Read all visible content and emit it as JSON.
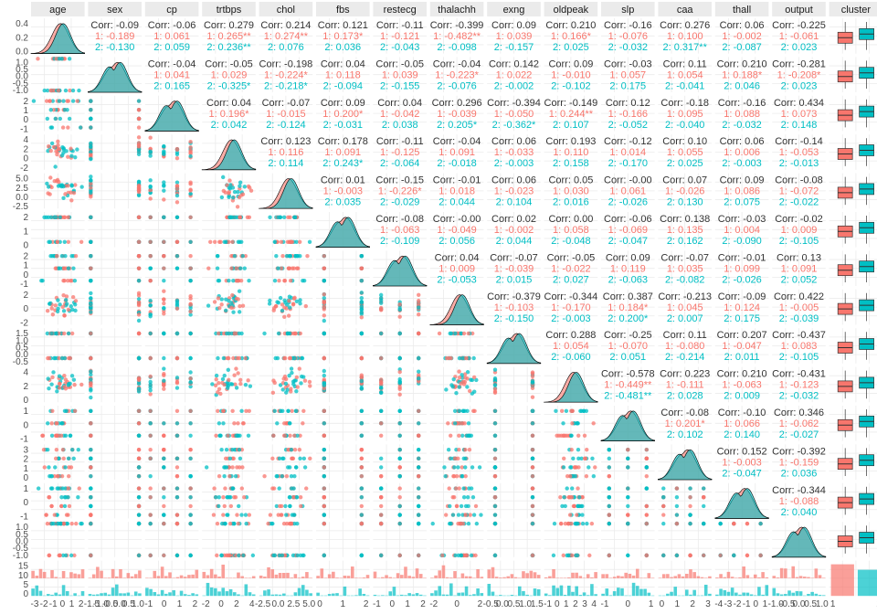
{
  "chart_data": {
    "type": "pairs",
    "variables": [
      "age",
      "sex",
      "cp",
      "trtbps",
      "chol",
      "fbs",
      "restecg",
      "thalachh",
      "exng",
      "oldpeak",
      "slp",
      "caa",
      "thall",
      "output",
      "cluster"
    ],
    "groups": [
      {
        "name": "1",
        "color": "#F8766D"
      },
      {
        "name": "2",
        "color": "#00BFC4"
      }
    ],
    "correlations": {
      "age|sex": {
        "corr": "-0.09",
        "g1": "-0.189",
        "g2": "-0.130"
      },
      "age|cp": {
        "corr": "-0.06",
        "g1": "0.061",
        "g2": "0.059"
      },
      "age|trtbps": {
        "corr": "0.279",
        "g1": "0.265**",
        "g2": "0.236**"
      },
      "age|chol": {
        "corr": "0.214",
        "g1": "0.274**",
        "g2": "0.076"
      },
      "age|fbs": {
        "corr": "0.121",
        "g1": "0.173*",
        "g2": "0.036"
      },
      "age|restecg": {
        "corr": "-0.11",
        "g1": "-0.121",
        "g2": "-0.043"
      },
      "age|thalachh": {
        "corr": "-0.399",
        "g1": "-0.482**",
        "g2": "-0.098"
      },
      "age|exng": {
        "corr": "0.09",
        "g1": "0.039",
        "g2": "-0.157"
      },
      "age|oldpeak": {
        "corr": "0.210",
        "g1": "0.166*",
        "g2": "0.025"
      },
      "age|slp": {
        "corr": "-0.16",
        "g1": "-0.076",
        "g2": "-0.032"
      },
      "age|caa": {
        "corr": "0.276",
        "g1": "0.100",
        "g2": "0.317**"
      },
      "age|thall": {
        "corr": "0.06",
        "g1": "-0.002",
        "g2": "-0.087"
      },
      "age|output": {
        "corr": "-0.225",
        "g1": "-0.061",
        "g2": "0.023"
      },
      "sex|cp": {
        "corr": "-0.04",
        "g1": "0.041",
        "g2": "0.165"
      },
      "sex|trtbps": {
        "corr": "-0.05",
        "g1": "0.029",
        "g2": "-0.325*"
      },
      "sex|chol": {
        "corr": "-0.198",
        "g1": "-0.224*",
        "g2": "-0.218*"
      },
      "sex|fbs": {
        "corr": "0.04",
        "g1": "0.118",
        "g2": "-0.094"
      },
      "sex|restecg": {
        "corr": "-0.05",
        "g1": "0.039",
        "g2": "-0.155"
      },
      "sex|thalachh": {
        "corr": "-0.04",
        "g1": "-0.223*",
        "g2": "-0.076"
      },
      "sex|exng": {
        "corr": "0.142",
        "g1": "0.022",
        "g2": "-0.002"
      },
      "sex|oldpeak": {
        "corr": "0.09",
        "g1": "-0.010",
        "g2": "-0.102"
      },
      "sex|slp": {
        "corr": "-0.03",
        "g1": "0.057",
        "g2": "0.175"
      },
      "sex|caa": {
        "corr": "0.11",
        "g1": "0.054",
        "g2": "-0.041"
      },
      "sex|thall": {
        "corr": "0.210",
        "g1": "0.188*",
        "g2": "0.046"
      },
      "sex|output": {
        "corr": "-0.281",
        "g1": "-0.208*",
        "g2": "0.023"
      },
      "cp|trtbps": {
        "corr": "0.04",
        "g1": "0.196*",
        "g2": "0.042"
      },
      "cp|chol": {
        "corr": "-0.07",
        "g1": "-0.015",
        "g2": "-0.124"
      },
      "cp|fbs": {
        "corr": "0.09",
        "g1": "0.200*",
        "g2": "-0.031"
      },
      "cp|restecg": {
        "corr": "0.04",
        "g1": "-0.042",
        "g2": "0.038"
      },
      "cp|thalachh": {
        "corr": "0.296",
        "g1": "-0.039",
        "g2": "0.205*"
      },
      "cp|exng": {
        "corr": "-0.394",
        "g1": "-0.050",
        "g2": "-0.362*"
      },
      "cp|oldpeak": {
        "corr": "-0.149",
        "g1": "0.244**",
        "g2": "0.107"
      },
      "cp|slp": {
        "corr": "0.12",
        "g1": "-0.166",
        "g2": "-0.052"
      },
      "cp|caa": {
        "corr": "-0.18",
        "g1": "0.095",
        "g2": "-0.040"
      },
      "cp|thall": {
        "corr": "-0.16",
        "g1": "0.088",
        "g2": "-0.032"
      },
      "cp|output": {
        "corr": "0.434",
        "g1": "0.073",
        "g2": "0.148"
      },
      "trtbps|chol": {
        "corr": "0.123",
        "g1": "0.116",
        "g2": "0.114"
      },
      "trtbps|fbs": {
        "corr": "0.178",
        "g1": "0.091",
        "g2": "0.243*"
      },
      "trtbps|restecg": {
        "corr": "-0.11",
        "g1": "-0.125",
        "g2": "-0.064"
      },
      "trtbps|thalachh": {
        "corr": "-0.04",
        "g1": "0.091",
        "g2": "-0.018"
      },
      "trtbps|exng": {
        "corr": "0.06",
        "g1": "-0.033",
        "g2": "-0.003"
      },
      "trtbps|oldpeak": {
        "corr": "0.193",
        "g1": "0.110",
        "g2": "0.158"
      },
      "trtbps|slp": {
        "corr": "-0.12",
        "g1": "0.014",
        "g2": "-0.170"
      },
      "trtbps|caa": {
        "corr": "0.10",
        "g1": "0.055",
        "g2": "0.025"
      },
      "trtbps|thall": {
        "corr": "0.06",
        "g1": "0.006",
        "g2": "-0.003"
      },
      "trtbps|output": {
        "corr": "-0.14",
        "g1": "-0.053",
        "g2": "-0.013"
      },
      "chol|fbs": {
        "corr": "0.01",
        "g1": "-0.003",
        "g2": "0.035"
      },
      "chol|restecg": {
        "corr": "-0.15",
        "g1": "-0.226*",
        "g2": "-0.029"
      },
      "chol|thalachh": {
        "corr": "-0.01",
        "g1": "0.018",
        "g2": "0.044"
      },
      "chol|exng": {
        "corr": "0.06",
        "g1": "-0.023",
        "g2": "0.104"
      },
      "chol|oldpeak": {
        "corr": "0.05",
        "g1": "0.030",
        "g2": "0.016"
      },
      "chol|slp": {
        "corr": "-0.00",
        "g1": "0.061",
        "g2": "-0.026"
      },
      "chol|caa": {
        "corr": "0.07",
        "g1": "-0.026",
        "g2": "0.130"
      },
      "chol|thall": {
        "corr": "0.09",
        "g1": "0.086",
        "g2": "0.075"
      },
      "chol|output": {
        "corr": "-0.08",
        "g1": "-0.072",
        "g2": "-0.022"
      },
      "fbs|restecg": {
        "corr": "-0.08",
        "g1": "-0.063",
        "g2": "-0.109"
      },
      "fbs|thalachh": {
        "corr": "-0.00",
        "g1": "-0.049",
        "g2": "0.056"
      },
      "fbs|exng": {
        "corr": "0.02",
        "g1": "-0.002",
        "g2": "0.044"
      },
      "fbs|oldpeak": {
        "corr": "0.00",
        "g1": "0.058",
        "g2": "-0.048"
      },
      "fbs|slp": {
        "corr": "-0.06",
        "g1": "-0.069",
        "g2": "-0.047"
      },
      "fbs|caa": {
        "corr": "0.138",
        "g1": "0.135",
        "g2": "0.162"
      },
      "fbs|thall": {
        "corr": "-0.03",
        "g1": "0.004",
        "g2": "-0.090"
      },
      "fbs|output": {
        "corr": "-0.02",
        "g1": "0.009",
        "g2": "-0.105"
      },
      "restecg|thalachh": {
        "corr": "0.04",
        "g1": "0.009",
        "g2": "-0.053"
      },
      "restecg|exng": {
        "corr": "-0.07",
        "g1": "-0.039",
        "g2": "0.015"
      },
      "restecg|oldpeak": {
        "corr": "-0.05",
        "g1": "-0.022",
        "g2": "0.027"
      },
      "restecg|slp": {
        "corr": "0.09",
        "g1": "0.119",
        "g2": "-0.063"
      },
      "restecg|caa": {
        "corr": "-0.07",
        "g1": "0.035",
        "g2": "-0.082"
      },
      "restecg|thall": {
        "corr": "-0.01",
        "g1": "0.099",
        "g2": "-0.026"
      },
      "restecg|output": {
        "corr": "0.13",
        "g1": "0.091",
        "g2": "0.052"
      },
      "thalachh|exng": {
        "corr": "-0.379",
        "g1": "-0.103",
        "g2": "-0.150"
      },
      "thalachh|oldpeak": {
        "corr": "-0.344",
        "g1": "-0.170",
        "g2": "-0.003"
      },
      "thalachh|slp": {
        "corr": "0.387",
        "g1": "0.184*",
        "g2": "0.200*"
      },
      "thalachh|caa": {
        "corr": "-0.213",
        "g1": "0.045",
        "g2": "0.007"
      },
      "thalachh|thall": {
        "corr": "-0.09",
        "g1": "0.124",
        "g2": "0.175"
      },
      "thalachh|output": {
        "corr": "0.422",
        "g1": "-0.005",
        "g2": "-0.039"
      },
      "exng|oldpeak": {
        "corr": "0.288",
        "g1": "0.054",
        "g2": "-0.060"
      },
      "exng|slp": {
        "corr": "-0.25",
        "g1": "-0.070",
        "g2": "0.051"
      },
      "exng|caa": {
        "corr": "0.11",
        "g1": "-0.080",
        "g2": "-0.214"
      },
      "exng|thall": {
        "corr": "0.207",
        "g1": "-0.047",
        "g2": "0.011"
      },
      "exng|output": {
        "corr": "-0.437",
        "g1": "0.083",
        "g2": "-0.105"
      },
      "oldpeak|slp": {
        "corr": "-0.578",
        "g1": "-0.449**",
        "g2": "-0.481**"
      },
      "oldpeak|caa": {
        "corr": "0.223",
        "g1": "-0.111",
        "g2": "0.028"
      },
      "oldpeak|thall": {
        "corr": "0.210",
        "g1": "-0.063",
        "g2": "0.009"
      },
      "oldpeak|output": {
        "corr": "-0.431",
        "g1": "-0.123",
        "g2": "-0.032"
      },
      "slp|caa": {
        "corr": "-0.08",
        "g1": "0.201*",
        "g2": "0.102"
      },
      "slp|thall": {
        "corr": "-0.10",
        "g1": "0.066",
        "g2": "0.140"
      },
      "slp|output": {
        "corr": "0.346",
        "g1": "-0.062",
        "g2": "-0.027"
      },
      "caa|thall": {
        "corr": "0.152",
        "g1": "-0.003",
        "g2": "-0.047"
      },
      "caa|output": {
        "corr": "-0.392",
        "g1": "-0.159",
        "g2": "0.036"
      },
      "thall|output": {
        "corr": "-0.344",
        "g1": "-0.088",
        "g2": "0.040"
      }
    },
    "corr_label": "Corr:",
    "y_ticks": {
      "age": [
        "0.4",
        "0.2",
        "0.0"
      ],
      "sex": [
        "1.0",
        "0.5",
        "0.0",
        "-0.5",
        "-1.0"
      ],
      "cp": [
        "2",
        "1",
        "0",
        "-1"
      ],
      "trtbps": [
        "4",
        "2",
        "0",
        "-2"
      ],
      "chol": [
        "5.0",
        "2.5",
        "0.0",
        "-2.5"
      ],
      "fbs": [
        "2",
        "1",
        "0"
      ],
      "restecg": [
        "2",
        "1",
        "0",
        "-1"
      ],
      "thalachh": [
        "2",
        "0",
        "-2"
      ],
      "exng": [
        "1.5",
        "1.0",
        "0.5",
        "0.0",
        "-0.5"
      ],
      "oldpeak": [
        "4",
        "2",
        "0"
      ],
      "slp": [
        "1",
        "0",
        "-1"
      ],
      "caa": [
        "3",
        "2",
        "1",
        "0"
      ],
      "thall": [
        "1",
        "0",
        "-1"
      ],
      "output": [
        "1.0",
        "0.5",
        "0.0",
        "-0.5",
        "-1.0"
      ],
      "cluster": [
        "15",
        "10",
        "5",
        "0"
      ]
    },
    "x_ticks": {
      "age": [
        "-3",
        "-2",
        "-1",
        "0",
        "1",
        "2"
      ],
      "sex": [
        "-1.5",
        "-1.0",
        "-0.5",
        "0.0",
        "0.5",
        "1.0"
      ],
      "cp": [
        "-1",
        "0",
        "1",
        "2"
      ],
      "trtbps": [
        "-2",
        "0",
        "2",
        "4"
      ],
      "chol": [
        "-2.5",
        "0.0",
        "2.5",
        "5.0"
      ],
      "fbs": [
        "0",
        "1",
        "2"
      ],
      "restecg": [
        "-1",
        "0",
        "1",
        "2"
      ],
      "thalachh": [
        "-2",
        "0",
        "2"
      ],
      "exng": [
        "-0.5",
        "0.0",
        "0.5",
        "1.0",
        "1.5"
      ],
      "oldpeak": [
        "-1",
        "0",
        "1",
        "2",
        "3",
        "4"
      ],
      "slp": [
        "-1",
        "0",
        "1"
      ],
      "caa": [
        "0",
        "1",
        "2",
        "3"
      ],
      "thall": [
        "-4",
        "-3",
        "-2",
        "-1",
        "0",
        "1"
      ],
      "output": [
        "-1.0",
        "-0.5",
        "0.0",
        "0.5",
        "1.0"
      ],
      "cluster": [
        "1",
        "2"
      ]
    },
    "grid": true,
    "legend": "none"
  }
}
